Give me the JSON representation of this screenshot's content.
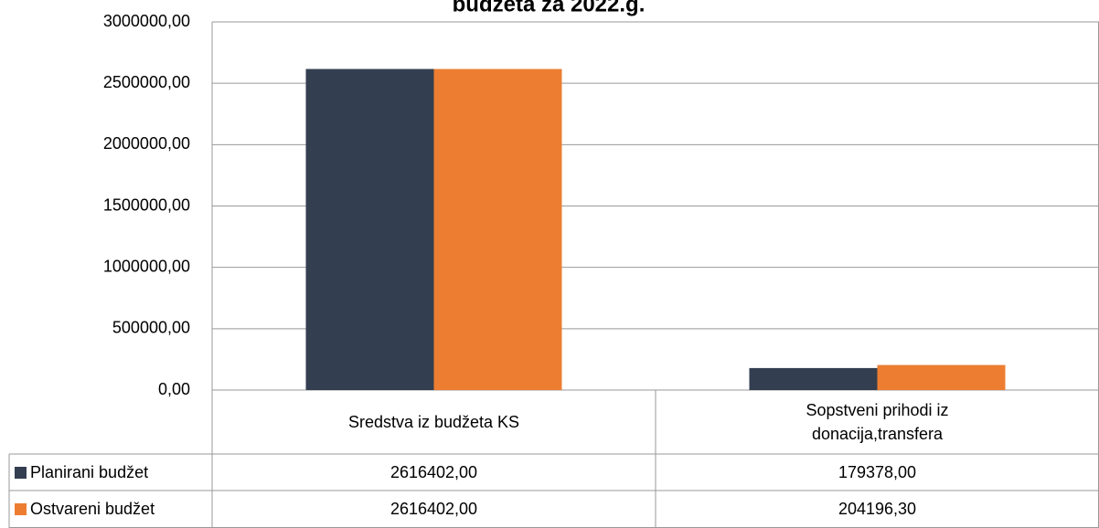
{
  "chart_data": {
    "type": "bar",
    "title": "budžeta za 2022.g.",
    "categories": [
      "Sredstva iz budžeta KS",
      "Sopstveni prihodi iz donacija,transfera"
    ],
    "series": [
      {
        "name": "Planirani budžet",
        "color": "#333f50",
        "values": [
          2616402,
          179378
        ],
        "value_labels": [
          "2616402,00",
          "179378,00"
        ]
      },
      {
        "name": "Ostvareni budžet",
        "color": "#ed7d31",
        "values": [
          2616402,
          204196.3
        ],
        "value_labels": [
          "2616402,00",
          "204196,30"
        ]
      }
    ],
    "ylim": [
      0,
      3000000
    ],
    "yticks": [
      {
        "value": 0,
        "label": "0,00"
      },
      {
        "value": 500000,
        "label": "500000,00"
      },
      {
        "value": 1000000,
        "label": "1000000,00"
      },
      {
        "value": 1500000,
        "label": "1500000,00"
      },
      {
        "value": 2000000,
        "label": "2000000,00"
      },
      {
        "value": 2500000,
        "label": "2500000,00"
      },
      {
        "value": 3000000,
        "label": "3000000,00"
      }
    ],
    "grid": true
  }
}
